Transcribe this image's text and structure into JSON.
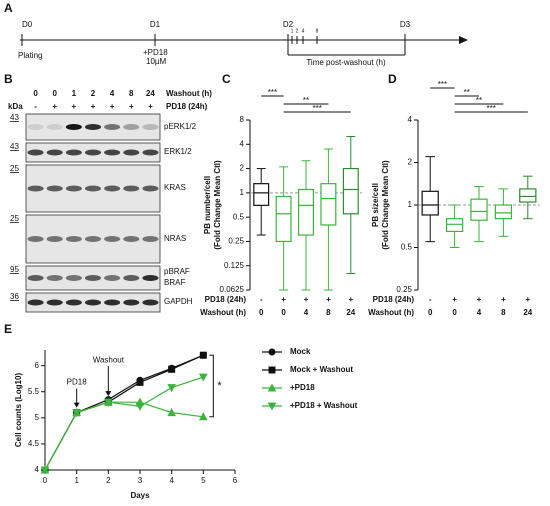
{
  "panels": {
    "a": {
      "label": "A",
      "days": [
        "D0",
        "D1",
        "D2",
        "D3"
      ],
      "events": [
        "Plating",
        "+PD18",
        "10µM"
      ],
      "ticks": [
        "1",
        "2",
        "4",
        "8"
      ],
      "bracket": "Time post-washout (h)"
    },
    "b": {
      "label": "B",
      "washout": [
        "0",
        "0",
        "1",
        "2",
        "4",
        "8",
        "24"
      ],
      "pd18": [
        "-",
        "+",
        "+",
        "+",
        "+",
        "+",
        "+"
      ],
      "row_labels": [
        "Washout (h)",
        "PD18 (24h)"
      ],
      "kda": "kDa",
      "markers": [
        "43",
        "43",
        "25",
        "25",
        "95",
        "36"
      ],
      "bands": [
        "pERK1/2",
        "ERK1/2",
        "KRAS",
        "NRAS",
        "pBRAF",
        "BRAF",
        "GAPDH"
      ]
    },
    "c": {
      "label": "C"
    },
    "d": {
      "label": "D"
    },
    "e": {
      "label": "E"
    }
  },
  "chart_data": [
    {
      "type": "box",
      "ylabel": [
        "PB number/cell",
        "(Fold Change Mean Ctl)"
      ],
      "log_scale": true,
      "categories": [
        "0",
        "0",
        "4",
        "8",
        "24"
      ],
      "pd18_row": [
        "-",
        "+",
        "+",
        "+",
        "+"
      ],
      "row_labels": [
        "PD18 (24h)",
        "Washout (h)"
      ],
      "colors": [
        "#111111",
        "#3cb43c",
        "#3cb43c",
        "#3cb43c",
        "#2e8b2e"
      ],
      "min": [
        0.3,
        0.0625,
        0.0625,
        0.0625,
        0.1
      ],
      "q1": [
        0.7,
        0.25,
        0.3,
        0.4,
        0.55
      ],
      "median": [
        1,
        0.55,
        0.7,
        0.85,
        1.1
      ],
      "q3": [
        1.3,
        0.9,
        1.1,
        1.3,
        2
      ],
      "max": [
        2,
        2.1,
        2.5,
        3.5,
        5
      ],
      "reference_line": 1,
      "significance": [
        "***",
        "**",
        "***"
      ],
      "ylim": [
        0.0625,
        8
      ],
      "yticks": [
        0.0625,
        0.125,
        0.25,
        0.5,
        1,
        2,
        4,
        8
      ]
    },
    {
      "type": "box",
      "ylabel": [
        "PB size/cell",
        "(Fold Change Mean Ctl)"
      ],
      "log_scale": true,
      "categories": [
        "0",
        "0",
        "4",
        "8",
        "24"
      ],
      "pd18_row": [
        "-",
        "+",
        "+",
        "+",
        "+"
      ],
      "row_labels": [
        "PD18 (24h)",
        "Washout (h)"
      ],
      "colors": [
        "#111111",
        "#3cb43c",
        "#3cb43c",
        "#3cb43c",
        "#2e8b2e"
      ],
      "min": [
        0.55,
        0.5,
        0.55,
        0.6,
        0.8
      ],
      "q1": [
        0.85,
        0.65,
        0.78,
        0.8,
        1.05
      ],
      "median": [
        1,
        0.73,
        0.9,
        0.88,
        1.15
      ],
      "q3": [
        1.25,
        0.8,
        1.1,
        1,
        1.3
      ],
      "max": [
        2.2,
        1,
        1.35,
        1.3,
        1.6
      ],
      "reference_line": 1,
      "significance": [
        "***",
        "**",
        "**",
        "***"
      ],
      "ylim": [
        0.25,
        4
      ],
      "yticks": [
        0.25,
        0.5,
        1,
        2,
        4
      ]
    },
    {
      "type": "line",
      "xlabel": "Days",
      "ylabel": "Cell counts (Log10)",
      "annotations": [
        "PD18",
        "Washout",
        "*"
      ],
      "x": [
        0,
        1,
        2,
        3,
        4,
        5
      ],
      "series": [
        {
          "name": "Mock",
          "color": "#111111",
          "marker": "circle",
          "values": [
            4,
            5.1,
            5.35,
            5.72,
            5.95,
            6.2
          ]
        },
        {
          "name": "Mock + Washout",
          "color": "#111111",
          "marker": "square",
          "values": [
            4,
            5.1,
            5.3,
            5.68,
            5.93,
            6.2
          ]
        },
        {
          "name": "+PD18",
          "color": "#3cb43c",
          "marker": "triangle-up",
          "values": [
            4,
            5.1,
            5.3,
            5.3,
            5.1,
            5.02
          ]
        },
        {
          "name": "+PD18 + Washout",
          "color": "#3cb43c",
          "marker": "triangle-down",
          "values": [
            4,
            5.1,
            5.3,
            5.22,
            5.58,
            5.78
          ]
        }
      ],
      "xlim": [
        0,
        6
      ],
      "xticks": [
        0,
        1,
        2,
        3,
        4,
        5,
        6
      ],
      "ylim": [
        4,
        6.3
      ],
      "yticks": [
        4,
        4.5,
        5,
        5.5,
        6
      ]
    }
  ]
}
